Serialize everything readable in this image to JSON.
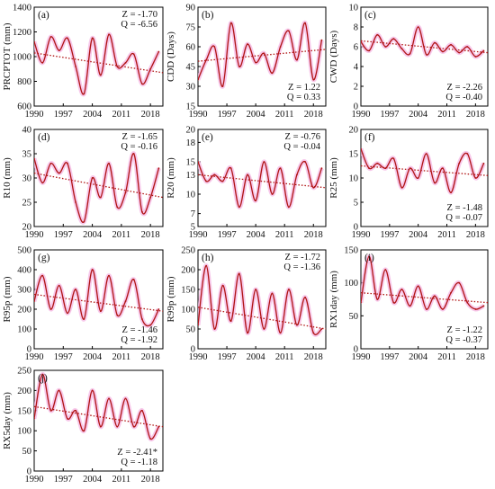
{
  "colors": {
    "line": "#b01414",
    "trend": "#b01414",
    "halo": "#f4b6e3",
    "axis": "#000000"
  },
  "chart_data": [
    {
      "type": "line",
      "panel_label": "(a)",
      "ylabel": "PRCPTOT (mm)",
      "xlabel": "",
      "x": [
        1990,
        1992,
        1994,
        1996,
        1998,
        2000,
        2002,
        2004,
        2006,
        2008,
        2010,
        2012,
        2014,
        2016,
        2018,
        2020
      ],
      "values": [
        1120,
        950,
        1160,
        1050,
        1150,
        920,
        700,
        1150,
        850,
        1180,
        920,
        950,
        1020,
        780,
        900,
        1040
      ],
      "trend": [
        1030,
        870
      ],
      "xlim": [
        1990,
        2021
      ],
      "ylim": [
        600,
        1400
      ],
      "yticks": [
        600,
        800,
        1000,
        1200,
        1400
      ],
      "xticks": [
        1990,
        1997,
        2004,
        2011,
        2018
      ],
      "stats": [
        "Z = -1.70",
        "Q = -6.56"
      ],
      "stats_pos": "top-right"
    },
    {
      "type": "line",
      "panel_label": "(b)",
      "ylabel": "CDD (Days)",
      "xlabel": "",
      "x": [
        1990,
        1992,
        1994,
        1996,
        1998,
        2000,
        2002,
        2004,
        2006,
        2008,
        2010,
        2012,
        2014,
        2016,
        2018,
        2020
      ],
      "values": [
        35,
        50,
        60,
        30,
        78,
        45,
        62,
        48,
        55,
        40,
        60,
        72,
        50,
        78,
        35,
        65
      ],
      "trend": [
        49,
        58
      ],
      "xlim": [
        1990,
        2021
      ],
      "ylim": [
        15,
        90
      ],
      "yticks": [
        15,
        30,
        45,
        60,
        75,
        90
      ],
      "xticks": [
        1990,
        1997,
        2004,
        2011,
        2018
      ],
      "stats": [
        "Z = 1.22",
        "Q = 0.33"
      ],
      "stats_pos": "bottom-right"
    },
    {
      "type": "line",
      "panel_label": "(c)",
      "ylabel": "CWD (Days)",
      "xlabel": "",
      "x": [
        1990,
        1992,
        1994,
        1996,
        1998,
        2000,
        2002,
        2004,
        2006,
        2008,
        2010,
        2012,
        2014,
        2016,
        2018,
        2020
      ],
      "values": [
        6.5,
        5.6,
        7.2,
        6.0,
        6.8,
        5.8,
        5.3,
        8.0,
        5.2,
        6.4,
        5.5,
        6.2,
        5.4,
        6.0,
        5.0,
        5.6
      ],
      "trend": [
        6.6,
        5.4
      ],
      "xlim": [
        1990,
        2021
      ],
      "ylim": [
        0,
        10
      ],
      "yticks": [
        0,
        2,
        4,
        6,
        8,
        10
      ],
      "xticks": [
        1990,
        1997,
        2004,
        2011,
        2018
      ],
      "stats": [
        "Z = -2.26",
        "Q = -0.40"
      ],
      "stats_pos": "bottom-right"
    },
    {
      "type": "line",
      "panel_label": "(d)",
      "ylabel": "R10 (mm)",
      "xlabel": "",
      "x": [
        1990,
        1992,
        1994,
        1996,
        1998,
        2000,
        2002,
        2004,
        2006,
        2008,
        2010,
        2012,
        2014,
        2016,
        2018,
        2020
      ],
      "values": [
        34,
        29,
        33,
        31,
        33,
        25,
        21,
        30,
        26,
        33,
        24,
        27,
        35,
        23,
        26,
        32
      ],
      "trend": [
        31,
        26
      ],
      "xlim": [
        1990,
        2021
      ],
      "ylim": [
        20,
        40
      ],
      "yticks": [
        20,
        25,
        30,
        35,
        40
      ],
      "xticks": [
        1990,
        1997,
        2004,
        2011,
        2018
      ],
      "stats": [
        "Z = -1.65",
        "Q = -0.16"
      ],
      "stats_pos": "top-right"
    },
    {
      "type": "line",
      "panel_label": "(e)",
      "ylabel": "R20 (mm)",
      "xlabel": "",
      "x": [
        1990,
        1992,
        1994,
        1996,
        1998,
        2000,
        2002,
        2004,
        2006,
        2008,
        2010,
        2012,
        2014,
        2016,
        2018,
        2020
      ],
      "values": [
        15,
        12,
        13,
        12,
        14,
        8,
        13,
        9,
        15,
        10,
        14,
        8,
        13,
        15,
        11,
        14
      ],
      "trend": [
        13,
        11
      ],
      "xlim": [
        1990,
        2021
      ],
      "ylim": [
        5,
        20
      ],
      "yticks": [
        5,
        7,
        10,
        13,
        15,
        18,
        20
      ],
      "xticks": [
        1990,
        1997,
        2004,
        2011,
        2018
      ],
      "stats": [
        "Z = -0.76",
        "Q = -0.04"
      ],
      "stats_pos": "top-right"
    },
    {
      "type": "line",
      "panel_label": "(f)",
      "ylabel": "R25 (mm)",
      "xlabel": "",
      "x": [
        1990,
        1992,
        1994,
        1996,
        1998,
        2000,
        2002,
        2004,
        2006,
        2008,
        2010,
        2012,
        2014,
        2016,
        2018,
        2020
      ],
      "values": [
        16,
        12,
        13,
        12,
        14,
        8,
        12,
        10,
        15,
        9,
        12,
        7,
        13,
        15,
        10,
        13
      ],
      "trend": [
        12.5,
        10.5
      ],
      "xlim": [
        1990,
        2021
      ],
      "ylim": [
        0,
        20
      ],
      "yticks": [
        0,
        5,
        10,
        15,
        20
      ],
      "xticks": [
        1990,
        1997,
        2004,
        2011,
        2018
      ],
      "stats": [
        "Z = -1.48",
        "Q = -0.07"
      ],
      "stats_pos": "bottom-right"
    },
    {
      "type": "line",
      "panel_label": "(g)",
      "ylabel": "R95p (mm)",
      "xlabel": "",
      "x": [
        1990,
        1992,
        1994,
        1996,
        1998,
        2000,
        2002,
        2004,
        2006,
        2008,
        2010,
        2012,
        2014,
        2016,
        2018,
        2020
      ],
      "values": [
        240,
        370,
        200,
        320,
        180,
        300,
        150,
        400,
        190,
        370,
        170,
        240,
        350,
        150,
        120,
        200
      ],
      "trend": [
        275,
        190
      ],
      "xlim": [
        1990,
        2021
      ],
      "ylim": [
        0,
        500
      ],
      "yticks": [
        0,
        100,
        200,
        300,
        400,
        500
      ],
      "xticks": [
        1990,
        1997,
        2004,
        2011,
        2018
      ],
      "stats": [
        "Z = -1.46",
        "Q = -1.92"
      ],
      "stats_pos": "bottom-right"
    },
    {
      "type": "line",
      "panel_label": "(h)",
      "ylabel": "R99p (mm)",
      "xlabel": "",
      "x": [
        1990,
        1992,
        1994,
        1996,
        1998,
        2000,
        2002,
        2004,
        2006,
        2008,
        2010,
        2012,
        2014,
        2016,
        2018,
        2020
      ],
      "values": [
        60,
        210,
        50,
        160,
        70,
        190,
        40,
        150,
        50,
        140,
        40,
        150,
        60,
        130,
        40,
        50
      ],
      "trend": [
        105,
        50
      ],
      "xlim": [
        1990,
        2021
      ],
      "ylim": [
        0,
        250
      ],
      "yticks": [
        0,
        50,
        100,
        150,
        200,
        250
      ],
      "xticks": [
        1990,
        1997,
        2004,
        2011,
        2018
      ],
      "stats": [
        "Z = -1.72",
        "Q = -1.36"
      ],
      "stats_pos": "top-right"
    },
    {
      "type": "line",
      "panel_label": "(i)",
      "ylabel": "RX1day (mm)",
      "xlabel": "",
      "x": [
        1990,
        1992,
        1994,
        1996,
        1998,
        2000,
        2002,
        2004,
        2006,
        2008,
        2010,
        2012,
        2014,
        2016,
        2018,
        2020
      ],
      "values": [
        70,
        140,
        75,
        120,
        70,
        90,
        65,
        95,
        60,
        80,
        60,
        85,
        100,
        70,
        60,
        65
      ],
      "trend": [
        85,
        70
      ],
      "xlim": [
        1990,
        2021
      ],
      "ylim": [
        0,
        150
      ],
      "yticks": [
        0,
        50,
        100,
        150
      ],
      "xticks": [
        1990,
        1997,
        2004,
        2011,
        2018
      ],
      "stats": [
        "Z = -1.22",
        "Q = -0.37"
      ],
      "stats_pos": "bottom-right"
    },
    {
      "type": "line",
      "panel_label": "(j)",
      "ylabel": "RX5day (mm)",
      "xlabel": "",
      "x": [
        1990,
        1992,
        1994,
        1996,
        1998,
        2000,
        2002,
        2004,
        2006,
        2008,
        2010,
        2012,
        2014,
        2016,
        2018,
        2020
      ],
      "values": [
        130,
        240,
        150,
        200,
        130,
        150,
        100,
        200,
        110,
        180,
        110,
        180,
        110,
        150,
        80,
        110
      ],
      "trend": [
        160,
        110
      ],
      "xlim": [
        1990,
        2021
      ],
      "ylim": [
        0,
        250
      ],
      "yticks": [
        0,
        50,
        100,
        150,
        200,
        250
      ],
      "xticks": [
        1990,
        1997,
        2004,
        2011,
        2018
      ],
      "stats": [
        "Z = -2.41*",
        "Q = -1.18"
      ],
      "stats_pos": "bottom-right"
    }
  ]
}
